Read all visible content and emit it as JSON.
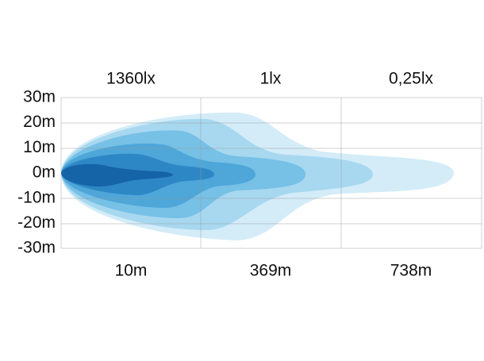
{
  "top_labels": [
    "1360lx",
    "1lx",
    "0,25lx"
  ],
  "y_labels": [
    "30m",
    "20m",
    "10m",
    "0m",
    "-10m",
    "-20m",
    "-30m"
  ],
  "x_labels": [
    "10m",
    "369m",
    "738m"
  ]
}
